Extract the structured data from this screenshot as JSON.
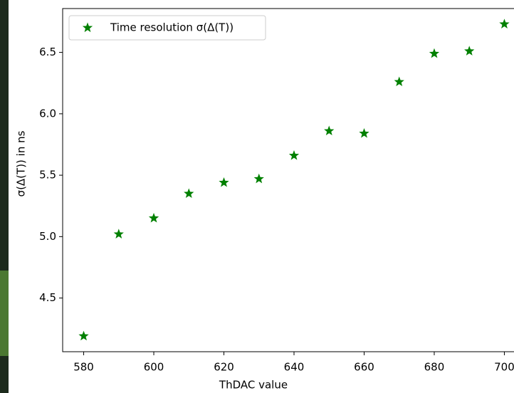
{
  "chart_data": {
    "type": "scatter",
    "x_label": "ThDAC value",
    "y_label": "σ(Δ(T)) in ns",
    "series": [
      {
        "name": "Time resolution σ(Δ(T))",
        "color": "#008000",
        "x": [
          580,
          590,
          600,
          610,
          620,
          630,
          640,
          650,
          660,
          670,
          680,
          690,
          700
        ],
        "values": [
          4.19,
          5.02,
          5.15,
          5.35,
          5.44,
          5.47,
          5.66,
          5.86,
          5.84,
          6.26,
          6.49,
          6.51,
          6.73
        ]
      }
    ],
    "xlim": [
      574,
      706
    ],
    "ylim": [
      4.063,
      6.857
    ],
    "xticks": [
      580,
      600,
      620,
      640,
      660,
      680,
      700
    ],
    "yticks": [
      4.5,
      {
        "value": 5,
        "label": "5.0"
      },
      5.5,
      {
        "value": 6,
        "label": "6.0"
      },
      6.5
    ],
    "legend": "upper left"
  }
}
